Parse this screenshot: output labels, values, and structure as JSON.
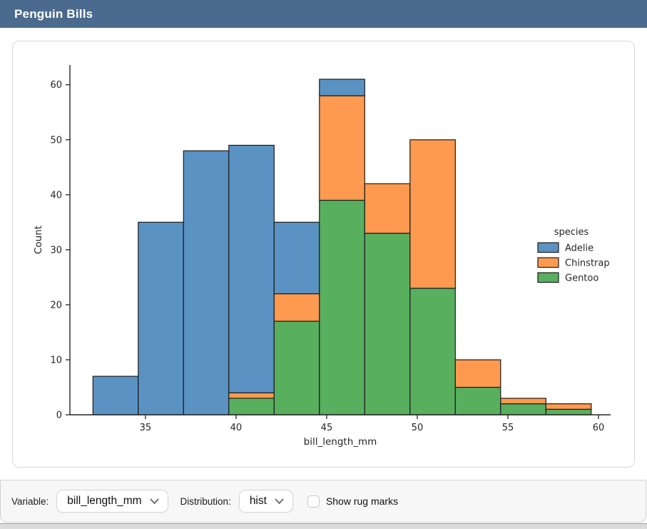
{
  "header": {
    "title": "Penguin Bills",
    "background": "#4a6b8e"
  },
  "chart_data": {
    "type": "bar",
    "subtype": "stacked-histogram",
    "title": "",
    "xlabel": "bill_length_mm",
    "ylabel": "Count",
    "bin_edges": [
      32.1,
      34.6,
      37.1,
      39.6,
      42.1,
      44.6,
      47.1,
      49.6,
      52.1,
      54.6,
      57.1,
      59.6
    ],
    "series": [
      {
        "name": "Adelie",
        "color": "#5a92c3",
        "values": [
          7,
          35,
          48,
          45,
          13,
          3,
          0,
          0,
          0,
          0,
          0
        ]
      },
      {
        "name": "Chinstrap",
        "color": "#fd9a4f",
        "values": [
          0,
          0,
          0,
          1,
          5,
          19,
          9,
          27,
          5,
          1,
          1
        ]
      },
      {
        "name": "Gentoo",
        "color": "#58b05f",
        "values": [
          0,
          0,
          0,
          3,
          17,
          39,
          33,
          23,
          5,
          2,
          1
        ]
      }
    ],
    "bin_totals": [
      7,
      35,
      48,
      49,
      35,
      61,
      42,
      50,
      10,
      3,
      2
    ],
    "stack_bottom_to_top": [
      "Gentoo",
      "Chinstrap",
      "Adelie"
    ],
    "x_ticks": [
      35,
      40,
      45,
      50,
      55,
      60
    ],
    "y_ticks": [
      0,
      10,
      20,
      30,
      40,
      50,
      60
    ],
    "xlim": [
      30.83,
      60.67
    ],
    "ylim": [
      0,
      63.6
    ],
    "legend_title": "species",
    "legend_position": "right",
    "grid": false,
    "edge_color": "#1c1c1c",
    "text_color": "#262626"
  },
  "controls": {
    "variable_label": "Variable:",
    "variable_value": "bill_length_mm",
    "distribution_label": "Distribution:",
    "distribution_value": "hist",
    "rug_label": "Show rug marks",
    "rug_checked": false
  }
}
